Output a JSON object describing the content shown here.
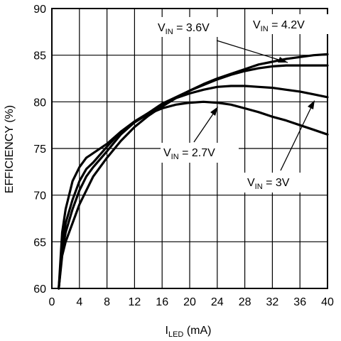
{
  "chart_data": {
    "type": "line",
    "xlabel_main": "I",
    "xlabel_sub": "LED",
    "xlabel_unit": " (mA)",
    "ylabel": "EFFICIENCY (%)",
    "xlim": [
      0,
      40
    ],
    "ylim": [
      60,
      90
    ],
    "xticks": [
      0,
      4,
      8,
      12,
      16,
      20,
      24,
      28,
      32,
      36,
      40
    ],
    "yticks": [
      60,
      65,
      70,
      75,
      80,
      85,
      90
    ],
    "xtick_labels": [
      "0",
      "4",
      "8",
      "12",
      "16",
      "20",
      "24",
      "28",
      "32",
      "36",
      "40"
    ],
    "ytick_labels": [
      "60",
      "65",
      "70",
      "75",
      "80",
      "85",
      "90"
    ],
    "grid": true,
    "line_color": "#000000",
    "series": [
      {
        "name": "VIN = 4.2V",
        "x": [
          1,
          1.5,
          2,
          3,
          4,
          5,
          6,
          8,
          10,
          12,
          14,
          16,
          18,
          20,
          22,
          24,
          26,
          28,
          30,
          32,
          34,
          36,
          38,
          40
        ],
        "y": [
          60,
          63.5,
          65,
          67,
          69,
          70.5,
          72,
          74,
          75.8,
          77.3,
          78.5,
          79.5,
          80.4,
          81.2,
          81.9,
          82.5,
          83,
          83.5,
          84,
          84.3,
          84.6,
          84.8,
          85,
          85.1
        ]
      },
      {
        "name": "VIN = 3.6V",
        "x": [
          1,
          1.5,
          2,
          3,
          4,
          5,
          6,
          8,
          10,
          12,
          14,
          16,
          18,
          20,
          22,
          24,
          26,
          28,
          30,
          32,
          34,
          36,
          38,
          40
        ],
        "y": [
          60,
          64,
          66,
          68.5,
          70.5,
          72,
          73,
          74.7,
          76.5,
          77.8,
          78.8,
          79.8,
          80.5,
          81.2,
          81.8,
          82.4,
          82.9,
          83.3,
          83.6,
          83.8,
          83.9,
          83.9,
          83.9,
          83.9
        ]
      },
      {
        "name": "VIN = 3V",
        "x": [
          1,
          1.5,
          2,
          3,
          4,
          5,
          6,
          8,
          10,
          12,
          14,
          16,
          18,
          20,
          22,
          24,
          26,
          28,
          30,
          32,
          34,
          36,
          38,
          40
        ],
        "y": [
          60,
          64.5,
          67,
          69.5,
          71.5,
          72.8,
          73.5,
          75.2,
          76.8,
          77.9,
          78.8,
          79.7,
          80.4,
          80.9,
          81.3,
          81.6,
          81.7,
          81.7,
          81.6,
          81.5,
          81.3,
          81.1,
          80.8,
          80.5
        ]
      },
      {
        "name": "VIN = 2.7V",
        "x": [
          1,
          1.5,
          2,
          3,
          4,
          5,
          6,
          8,
          10,
          12,
          14,
          16,
          18,
          20,
          22,
          24,
          26,
          28,
          30,
          32,
          34,
          36,
          38,
          40
        ],
        "y": [
          60,
          66,
          68.5,
          71.5,
          73,
          74,
          74.5,
          75.5,
          76.8,
          77.8,
          78.7,
          79.3,
          79.7,
          79.9,
          80,
          79.9,
          79.7,
          79.3,
          78.9,
          78.4,
          78,
          77.5,
          77,
          76.5
        ]
      }
    ],
    "annotations": [
      {
        "main": "V",
        "sub": "IN",
        "rest": " = 3.6V"
      },
      {
        "main": "V",
        "sub": "IN",
        "rest": " = 4.2V"
      },
      {
        "main": "V",
        "sub": "IN",
        "rest": " = 2.7V"
      },
      {
        "main": "V",
        "sub": "IN",
        "rest": " = 3V"
      }
    ]
  }
}
